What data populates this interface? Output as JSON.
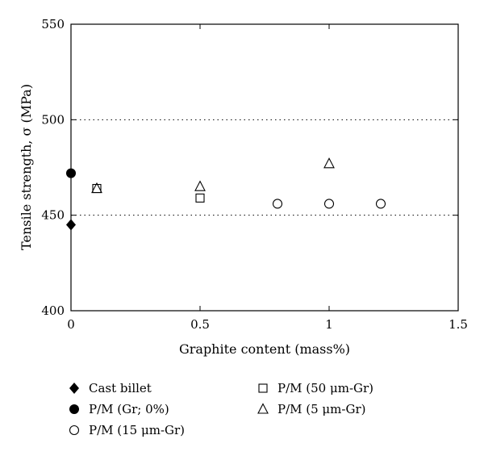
{
  "chart_data": {
    "type": "scatter",
    "xlabel": "Graphite content (mass%)",
    "ylabel": "Tensile strength, σ (MPa)",
    "xlim": [
      0,
      1.5
    ],
    "ylim": [
      400,
      550
    ],
    "xticks": [
      0,
      0.5,
      1,
      1.5
    ],
    "xtick_labels": [
      "0",
      "0.5",
      "1",
      "1.5"
    ],
    "yticks": [
      400,
      450,
      500,
      550
    ],
    "ytick_labels": [
      "400",
      "450",
      "500",
      "550"
    ],
    "grid": "dotted horizontal lines at 450 and 500",
    "legend_position": "below plot",
    "series": [
      {
        "name": "Cast billet",
        "marker": "filled-diamond",
        "x": [
          0
        ],
        "y": [
          445
        ]
      },
      {
        "name": "P/M (Gr; 0%)",
        "marker": "filled-circle",
        "x": [
          0
        ],
        "y": [
          472
        ]
      },
      {
        "name": "P/M (15 μm-Gr)",
        "marker": "open-circle",
        "x": [
          0.8,
          1.0,
          1.2
        ],
        "y": [
          456,
          456,
          456
        ]
      },
      {
        "name": "P/M (50 μm-Gr)",
        "marker": "open-square",
        "x": [
          0.1,
          0.5
        ],
        "y": [
          464,
          459
        ]
      },
      {
        "name": "P/M (5 μm-Gr)",
        "marker": "open-triangle",
        "x": [
          0.1,
          0.5,
          1.0
        ],
        "y": [
          464,
          465,
          477
        ]
      }
    ]
  }
}
